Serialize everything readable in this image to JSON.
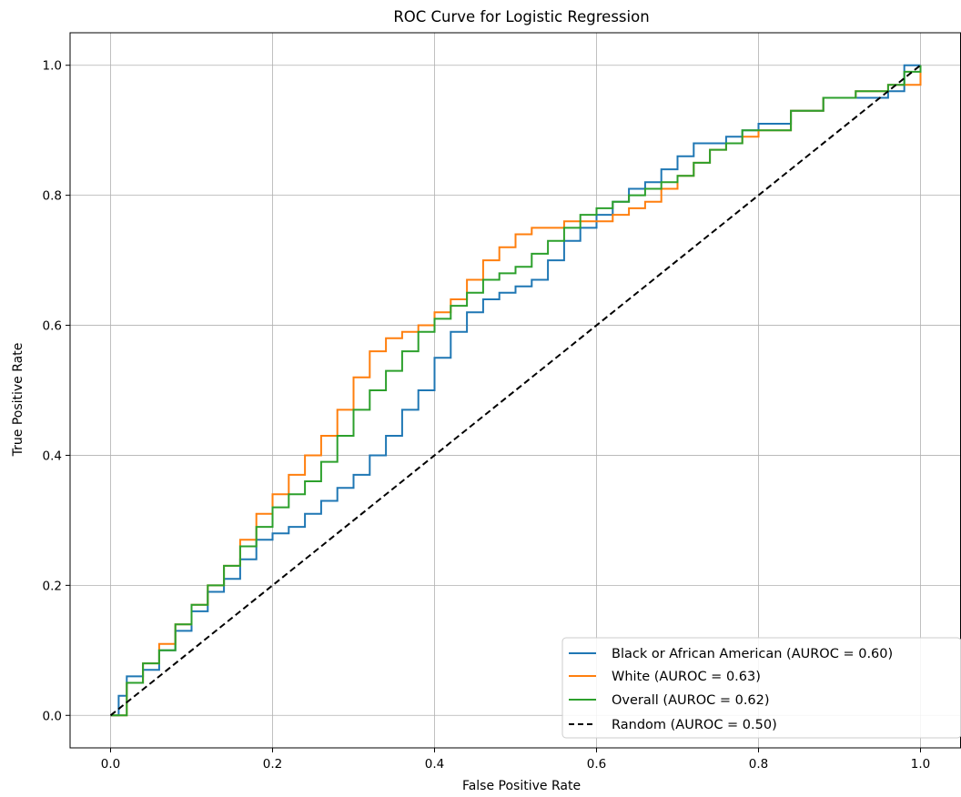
{
  "chart_data": {
    "type": "line",
    "title": "ROC Curve for Logistic Regression",
    "xlabel": "False Positive Rate",
    "ylabel": "True Positive Rate",
    "xlim": [
      -0.05,
      1.05
    ],
    "ylim": [
      -0.05,
      1.05
    ],
    "xticks": [
      0.0,
      0.2,
      0.4,
      0.6,
      0.8,
      1.0
    ],
    "yticks": [
      0.0,
      0.2,
      0.4,
      0.6,
      0.8,
      1.0
    ],
    "tick_labels_x": [
      "0.0",
      "0.2",
      "0.4",
      "0.6",
      "0.8",
      "1.0"
    ],
    "tick_labels_y": [
      "0.0",
      "0.2",
      "0.4",
      "0.6",
      "0.8",
      "1.0"
    ],
    "grid": true,
    "legend_position": "lower-right",
    "series": [
      {
        "name": "Black or African American (AUROC = 0.60)",
        "color": "#1f77b4",
        "style": "solid",
        "points": [
          [
            0,
            0
          ],
          [
            0.01,
            0.03
          ],
          [
            0.02,
            0.06
          ],
          [
            0.04,
            0.07
          ],
          [
            0.06,
            0.1
          ],
          [
            0.08,
            0.13
          ],
          [
            0.1,
            0.16
          ],
          [
            0.12,
            0.19
          ],
          [
            0.14,
            0.21
          ],
          [
            0.16,
            0.24
          ],
          [
            0.18,
            0.27
          ],
          [
            0.2,
            0.28
          ],
          [
            0.22,
            0.29
          ],
          [
            0.24,
            0.31
          ],
          [
            0.26,
            0.33
          ],
          [
            0.28,
            0.35
          ],
          [
            0.3,
            0.37
          ],
          [
            0.32,
            0.4
          ],
          [
            0.34,
            0.43
          ],
          [
            0.36,
            0.47
          ],
          [
            0.38,
            0.5
          ],
          [
            0.4,
            0.55
          ],
          [
            0.42,
            0.59
          ],
          [
            0.44,
            0.62
          ],
          [
            0.46,
            0.64
          ],
          [
            0.48,
            0.65
          ],
          [
            0.5,
            0.66
          ],
          [
            0.52,
            0.67
          ],
          [
            0.54,
            0.7
          ],
          [
            0.56,
            0.73
          ],
          [
            0.58,
            0.75
          ],
          [
            0.6,
            0.77
          ],
          [
            0.62,
            0.79
          ],
          [
            0.64,
            0.81
          ],
          [
            0.66,
            0.82
          ],
          [
            0.68,
            0.84
          ],
          [
            0.7,
            0.86
          ],
          [
            0.72,
            0.88
          ],
          [
            0.76,
            0.89
          ],
          [
            0.78,
            0.9
          ],
          [
            0.8,
            0.91
          ],
          [
            0.84,
            0.93
          ],
          [
            0.88,
            0.95
          ],
          [
            0.92,
            0.95
          ],
          [
            0.96,
            0.96
          ],
          [
            0.98,
            1.0
          ],
          [
            1.0,
            1.0
          ]
        ]
      },
      {
        "name": "White (AUROC = 0.63)",
        "color": "#ff7f0e",
        "style": "solid",
        "points": [
          [
            0,
            0
          ],
          [
            0.02,
            0.05
          ],
          [
            0.04,
            0.08
          ],
          [
            0.06,
            0.11
          ],
          [
            0.08,
            0.14
          ],
          [
            0.1,
            0.17
          ],
          [
            0.12,
            0.2
          ],
          [
            0.14,
            0.23
          ],
          [
            0.16,
            0.27
          ],
          [
            0.18,
            0.31
          ],
          [
            0.2,
            0.34
          ],
          [
            0.22,
            0.37
          ],
          [
            0.24,
            0.4
          ],
          [
            0.26,
            0.43
          ],
          [
            0.28,
            0.47
          ],
          [
            0.3,
            0.52
          ],
          [
            0.32,
            0.56
          ],
          [
            0.34,
            0.58
          ],
          [
            0.36,
            0.59
          ],
          [
            0.38,
            0.6
          ],
          [
            0.4,
            0.62
          ],
          [
            0.42,
            0.64
          ],
          [
            0.44,
            0.67
          ],
          [
            0.46,
            0.7
          ],
          [
            0.48,
            0.72
          ],
          [
            0.5,
            0.74
          ],
          [
            0.52,
            0.75
          ],
          [
            0.54,
            0.75
          ],
          [
            0.56,
            0.76
          ],
          [
            0.58,
            0.76
          ],
          [
            0.6,
            0.76
          ],
          [
            0.62,
            0.77
          ],
          [
            0.64,
            0.78
          ],
          [
            0.66,
            0.79
          ],
          [
            0.68,
            0.81
          ],
          [
            0.7,
            0.83
          ],
          [
            0.72,
            0.85
          ],
          [
            0.74,
            0.87
          ],
          [
            0.76,
            0.88
          ],
          [
            0.78,
            0.89
          ],
          [
            0.8,
            0.9
          ],
          [
            0.84,
            0.93
          ],
          [
            0.88,
            0.95
          ],
          [
            0.92,
            0.96
          ],
          [
            0.96,
            0.97
          ],
          [
            1.0,
            1.0
          ]
        ]
      },
      {
        "name": "Overall (AUROC = 0.62)",
        "color": "#2ca02c",
        "style": "solid",
        "points": [
          [
            0,
            0
          ],
          [
            0.02,
            0.05
          ],
          [
            0.04,
            0.08
          ],
          [
            0.06,
            0.1
          ],
          [
            0.08,
            0.14
          ],
          [
            0.1,
            0.17
          ],
          [
            0.12,
            0.2
          ],
          [
            0.14,
            0.23
          ],
          [
            0.16,
            0.26
          ],
          [
            0.18,
            0.29
          ],
          [
            0.2,
            0.32
          ],
          [
            0.22,
            0.34
          ],
          [
            0.24,
            0.36
          ],
          [
            0.26,
            0.39
          ],
          [
            0.28,
            0.43
          ],
          [
            0.3,
            0.47
          ],
          [
            0.32,
            0.5
          ],
          [
            0.34,
            0.53
          ],
          [
            0.36,
            0.56
          ],
          [
            0.38,
            0.59
          ],
          [
            0.4,
            0.61
          ],
          [
            0.42,
            0.63
          ],
          [
            0.44,
            0.65
          ],
          [
            0.46,
            0.67
          ],
          [
            0.48,
            0.68
          ],
          [
            0.5,
            0.69
          ],
          [
            0.52,
            0.71
          ],
          [
            0.54,
            0.73
          ],
          [
            0.56,
            0.75
          ],
          [
            0.58,
            0.77
          ],
          [
            0.6,
            0.78
          ],
          [
            0.62,
            0.79
          ],
          [
            0.64,
            0.8
          ],
          [
            0.66,
            0.81
          ],
          [
            0.68,
            0.82
          ],
          [
            0.7,
            0.83
          ],
          [
            0.72,
            0.85
          ],
          [
            0.74,
            0.87
          ],
          [
            0.76,
            0.88
          ],
          [
            0.78,
            0.9
          ],
          [
            0.8,
            0.9
          ],
          [
            0.84,
            0.93
          ],
          [
            0.88,
            0.95
          ],
          [
            0.92,
            0.96
          ],
          [
            0.96,
            0.97
          ],
          [
            0.98,
            0.99
          ],
          [
            1.0,
            1.0
          ]
        ]
      },
      {
        "name": "Random (AUROC = 0.50)",
        "color": "#000000",
        "style": "dashed",
        "points": [
          [
            0,
            0
          ],
          [
            1,
            1
          ]
        ]
      }
    ]
  }
}
